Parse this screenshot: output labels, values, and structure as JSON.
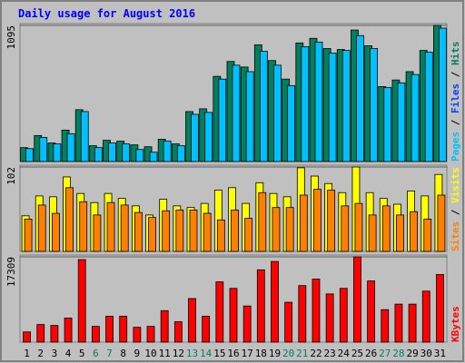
{
  "chart_data": [
    {
      "type": "bar",
      "title": "Daily usage for August 2016",
      "legend_separator": " / ",
      "ylim": [
        0,
        1095
      ],
      "yticks": [
        1095
      ],
      "series": [
        {
          "name": "Pages",
          "color": "#00c0ff",
          "values": [
            104,
            194,
            142,
            224,
            402,
            112,
            149,
            142,
            97,
            75,
            164,
            127,
            380,
            395,
            663,
            775,
            723,
            887,
            775,
            611,
            924,
            961,
            872,
            894,
            1013,
            909,
            596,
            633,
            700,
            879,
            1073
          ]
        },
        {
          "name": "Files",
          "color": "#0040ff",
          "values": [
            null,
            null,
            null,
            null,
            null,
            null,
            null,
            null,
            null,
            null,
            null,
            null,
            null,
            null,
            null,
            null,
            null,
            null,
            null,
            null,
            null,
            null,
            null,
            null,
            null,
            null,
            null,
            null,
            null,
            null,
            null
          ]
        },
        {
          "name": "Hits",
          "color": "#00805c",
          "values": [
            112,
            209,
            149,
            253,
            417,
            127,
            171,
            164,
            134,
            119,
            179,
            142,
            402,
            424,
            685,
            805,
            760,
            939,
            812,
            663,
            954,
            991,
            909,
            901,
            1058,
            931,
            603,
            656,
            723,
            894,
            1095
          ]
        }
      ]
    },
    {
      "type": "bar",
      "legend_separator": " / ",
      "ylim": [
        0,
        102
      ],
      "yticks": [
        102
      ],
      "series": [
        {
          "name": "Sites",
          "color": "#ff8000",
          "values": [
            39,
            56,
            46,
            77,
            60,
            44,
            59,
            56,
            47,
            41,
            49,
            50,
            50,
            46,
            38,
            50,
            40,
            71,
            53,
            53,
            68,
            75,
            74,
            55,
            58,
            44,
            55,
            44,
            48,
            39,
            68
          ]
        },
        {
          "name": "Visits",
          "color": "#ffff00",
          "values": [
            43,
            67,
            66,
            90,
            70,
            59,
            70,
            64,
            55,
            44,
            63,
            55,
            53,
            58,
            74,
            77,
            58,
            83,
            70,
            66,
            101,
            91,
            82,
            71,
            102,
            71,
            64,
            57,
            73,
            67,
            93
          ]
        }
      ]
    },
    {
      "type": "bar",
      "ylim": [
        0,
        17309
      ],
      "yticks": [
        17309
      ],
      "categories": [
        "1",
        "2",
        "3",
        "4",
        "5",
        "6",
        "7",
        "8",
        "9",
        "10",
        "11",
        "12",
        "13",
        "14",
        "15",
        "16",
        "17",
        "18",
        "19",
        "20",
        "21",
        "22",
        "23",
        "24",
        "25",
        "26",
        "27",
        "28",
        "29",
        "30",
        "31"
      ],
      "category_colors": [
        "#000000",
        "#000000",
        "#000000",
        "#000000",
        "#000000",
        "#00805c",
        "#00805c",
        "#000000",
        "#000000",
        "#000000",
        "#000000",
        "#000000",
        "#00805c",
        "#00805c",
        "#000000",
        "#000000",
        "#000000",
        "#000000",
        "#000000",
        "#00805c",
        "#00805c",
        "#000000",
        "#000000",
        "#000000",
        "#000000",
        "#000000",
        "#00805c",
        "#00805c",
        "#000000",
        "#000000",
        "#000000"
      ],
      "series": [
        {
          "name": "KBytes",
          "color": "#ff0000",
          "values": [
            2069,
            3574,
            3386,
            4892,
            16745,
            3198,
            5268,
            5268,
            3010,
            3198,
            6397,
            4139,
            8842,
            5268,
            12228,
            10911,
            7337,
            14675,
            16369,
            8089,
            11475,
            12792,
            9783,
            10911,
            17309,
            12416,
            6585,
            7714,
            7714,
            10347,
            13734
          ]
        }
      ]
    }
  ]
}
